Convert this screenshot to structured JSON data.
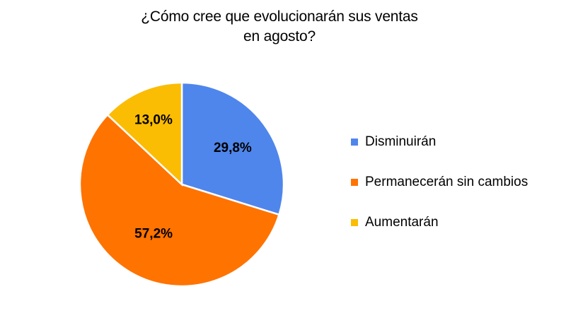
{
  "chart_data": {
    "type": "pie",
    "title": [
      "¿Cómo cree que evolucionarán sus ventas",
      "en agosto?"
    ],
    "categories": [
      "Disminuirán",
      "Permanecerán sin cambios",
      "Aumentarán"
    ],
    "values": [
      29.8,
      57.2,
      13.0
    ],
    "labels": [
      "29,8%",
      "57,2%",
      "13,0%"
    ],
    "colors": [
      "#4F86EC",
      "#FF7300",
      "#FBBC04"
    ],
    "legend_position": "right"
  }
}
